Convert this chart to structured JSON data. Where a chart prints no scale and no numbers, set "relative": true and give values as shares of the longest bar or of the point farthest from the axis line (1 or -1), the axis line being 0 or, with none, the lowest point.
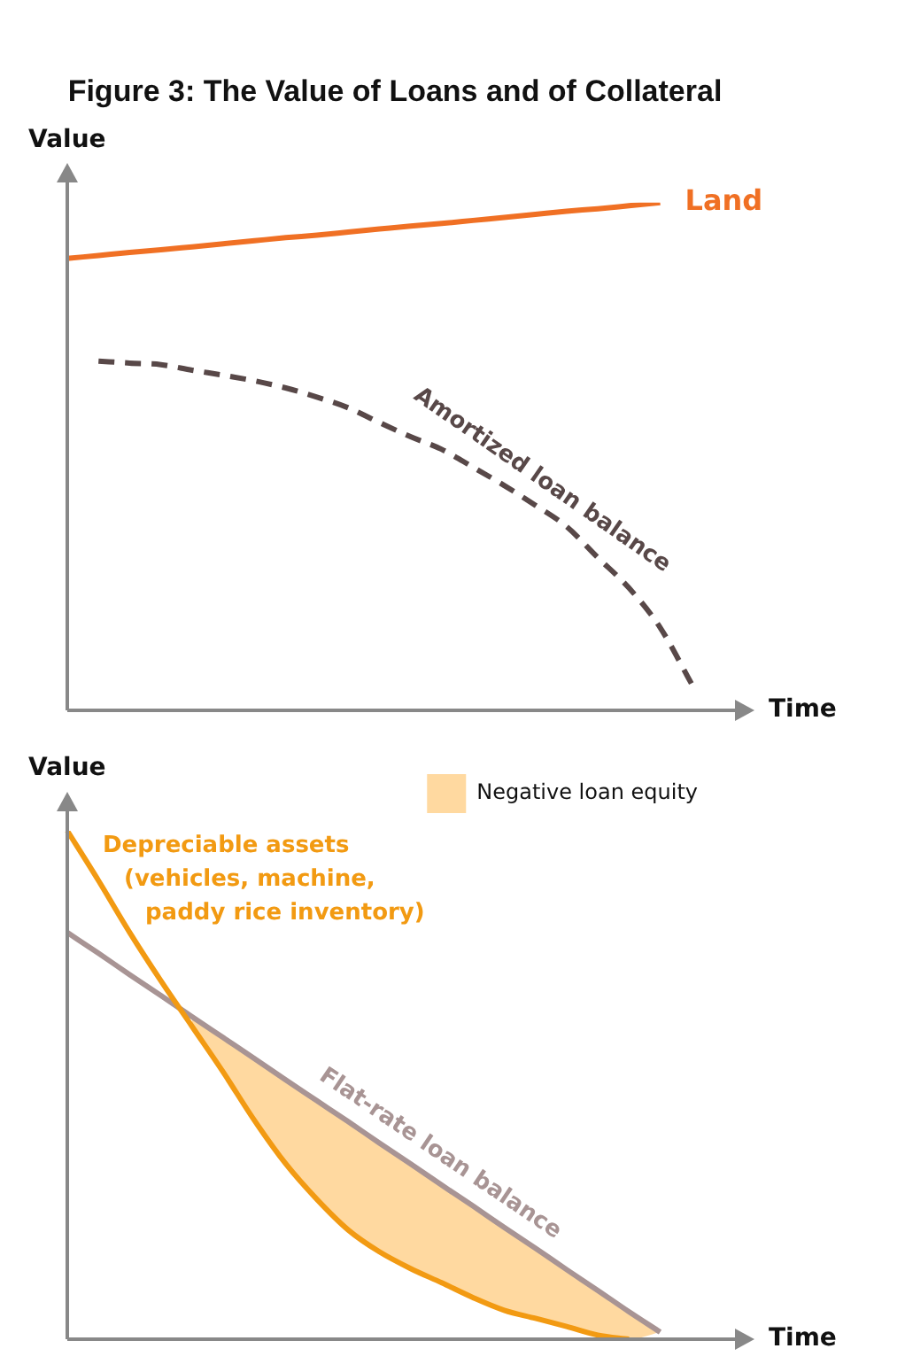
{
  "chart_data": [
    {
      "type": "line",
      "title": "Figure 3: The Value of Loans and of Collateral",
      "xlabel": "Time",
      "ylabel": "Value",
      "relative": true,
      "marker": "none",
      "categories": [
        null,
        null,
        null,
        null,
        null,
        null,
        null,
        null,
        null,
        null,
        null,
        null,
        null,
        null,
        null,
        null,
        null,
        null,
        null,
        null,
        null,
        null
      ],
      "series": [
        {
          "name": "Land",
          "color": "#f07024",
          "values": [
            0.89,
            0.896,
            0.902,
            0.907,
            0.913,
            0.919,
            0.925,
            0.931,
            0.936,
            0.942,
            0.948,
            0.954,
            0.959,
            0.965,
            0.971,
            0.977,
            0.983,
            0.988,
            0.994,
            1.0,
            null,
            null
          ]
        },
        {
          "name": "Amortized loan balance",
          "color": "#584848",
          "line_style": "dashed",
          "values": [
            null,
            0.688,
            0.684,
            0.681,
            0.67,
            0.66,
            0.649,
            0.635,
            0.617,
            0.596,
            0.567,
            0.539,
            0.514,
            0.479,
            0.443,
            0.404,
            0.362,
            0.301,
            0.241,
            0.163,
            0.053,
            null
          ]
        }
      ]
    },
    {
      "type": "line",
      "xlabel": "Time",
      "ylabel": "Value",
      "relative": true,
      "marker": "none",
      "legend": "top right",
      "categories": [
        null,
        null,
        null,
        null,
        null,
        null,
        null,
        null,
        null,
        null,
        null,
        null,
        null,
        null,
        null,
        null,
        null,
        null,
        null,
        null,
        null,
        null
      ],
      "series": [
        {
          "name": "Depreciable assets (vehicles, machine, paddy rice inventory)",
          "color": "#f29a12",
          "values": [
            1.0,
            0.902,
            0.8,
            0.705,
            0.615,
            0.525,
            0.43,
            0.345,
            0.275,
            0.215,
            0.172,
            0.139,
            0.111,
            0.082,
            0.057,
            0.041,
            0.025,
            0.008,
            0,
            null,
            null,
            null
          ]
        },
        {
          "name": "Flat-rate loan balance",
          "color": "#a89494",
          "values": [
            0.8,
            0.759,
            0.717,
            0.676,
            0.634,
            0.593,
            0.552,
            0.51,
            0.469,
            0.428,
            0.386,
            0.345,
            0.303,
            0.262,
            0.22,
            0.179,
            0.137,
            0.096,
            0.054,
            0.014,
            null,
            null
          ]
        },
        {
          "name": "Negative loan equity",
          "type": "area",
          "color": "#ffd9a0",
          "values": [
            null,
            null,
            null,
            null,
            0.634,
            0.593,
            0.552,
            0.51,
            0.469,
            0.428,
            0.386,
            0.345,
            0.303,
            0.262,
            0.22,
            0.179,
            0.137,
            0.096,
            0.054,
            0.014,
            null,
            null
          ]
        }
      ]
    }
  ]
}
